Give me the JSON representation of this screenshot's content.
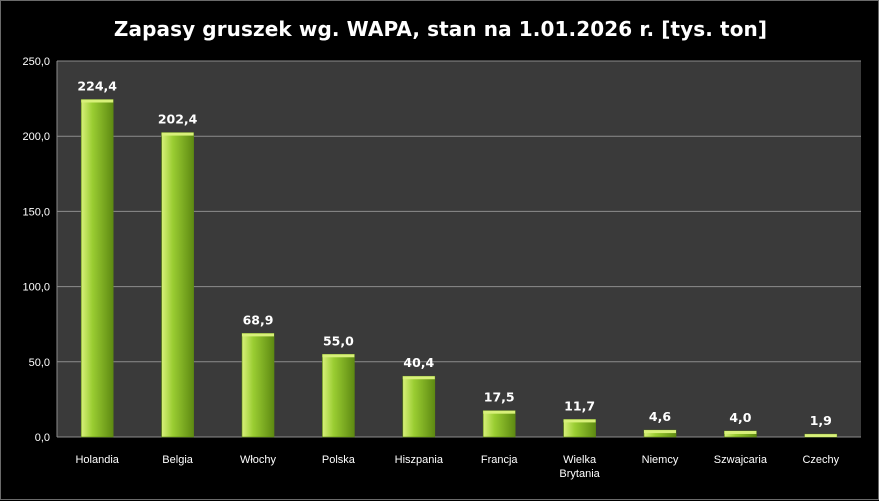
{
  "chart_data": {
    "type": "bar",
    "title": "Zapasy gruszek wg. WAPA, stan na 1.01.2026 r. [tys. ton]",
    "xlabel": "",
    "ylabel": "",
    "categories": [
      "Holandia",
      "Belgia",
      "Włochy",
      "Polska",
      "Hiszpania",
      "Francja",
      "Wielka Brytania",
      "Niemcy",
      "Szwajcaria",
      "Czechy"
    ],
    "values": [
      224.4,
      202.4,
      68.9,
      55.0,
      40.4,
      17.5,
      11.7,
      4.6,
      4.0,
      1.9
    ],
    "data_labels": [
      "224,4",
      "202,4",
      "68,9",
      "55,0",
      "40,4",
      "17,5",
      "11,7",
      "4,6",
      "4,0",
      "1,9"
    ],
    "ylim": [
      0,
      250
    ],
    "yticks": [
      "0,0",
      "50,0",
      "100,0",
      "150,0",
      "200,0",
      "250,0"
    ],
    "grid": true,
    "legend": "none",
    "colors": {
      "bar": "#9acd32",
      "bar_highlight": "#d8f07a",
      "bar_shadow": "#5e8a12",
      "plot_background": "#3a3a3a",
      "gridline": "#8c8c8c",
      "text": "#ffffff"
    }
  }
}
